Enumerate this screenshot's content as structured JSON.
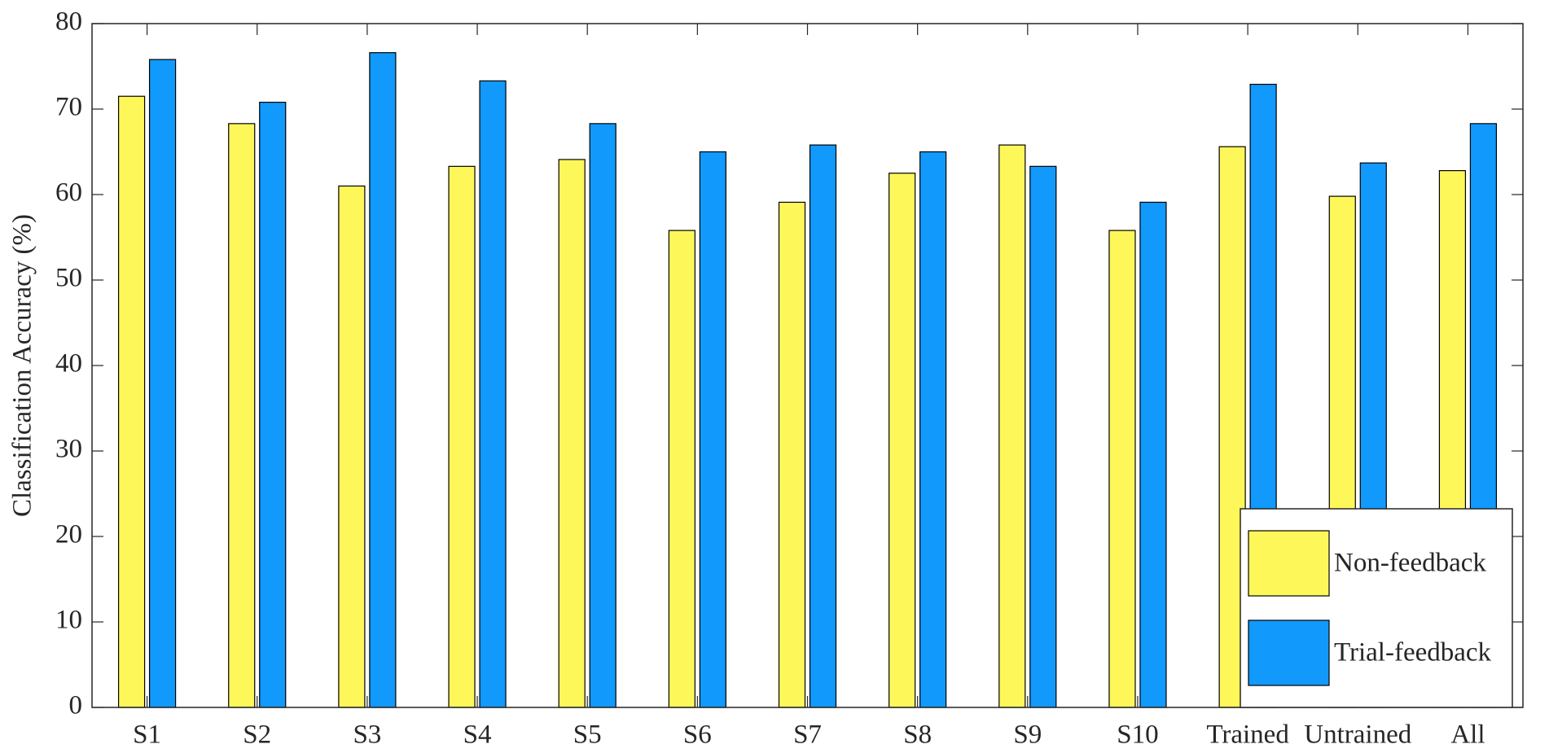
{
  "chart_data": {
    "type": "bar",
    "y_label": "Classification Accuracy (%)",
    "categories": [
      "S1",
      "S2",
      "S3",
      "S4",
      "S5",
      "S6",
      "S7",
      "S8",
      "S9",
      "S10",
      "Trained",
      "Untrained",
      "All"
    ],
    "series": [
      {
        "name": "Non-feedback",
        "color": "#fdf75a",
        "values": [
          71.5,
          68.3,
          61,
          63.3,
          64.1,
          55.8,
          59.1,
          62.5,
          65.8,
          55.8,
          65.6,
          59.8,
          62.8
        ]
      },
      {
        "name": "Trial-feedback",
        "color": "#1199fb",
        "values": [
          75.8,
          70.8,
          76.6,
          73.3,
          68.3,
          65,
          65.8,
          65,
          63.3,
          59.1,
          72.9,
          63.7,
          68.3
        ]
      }
    ],
    "ylim": [
      0,
      80
    ],
    "yticks": [
      0,
      10,
      20,
      30,
      40,
      50,
      60,
      70,
      80
    ],
    "legend": "lower right"
  }
}
